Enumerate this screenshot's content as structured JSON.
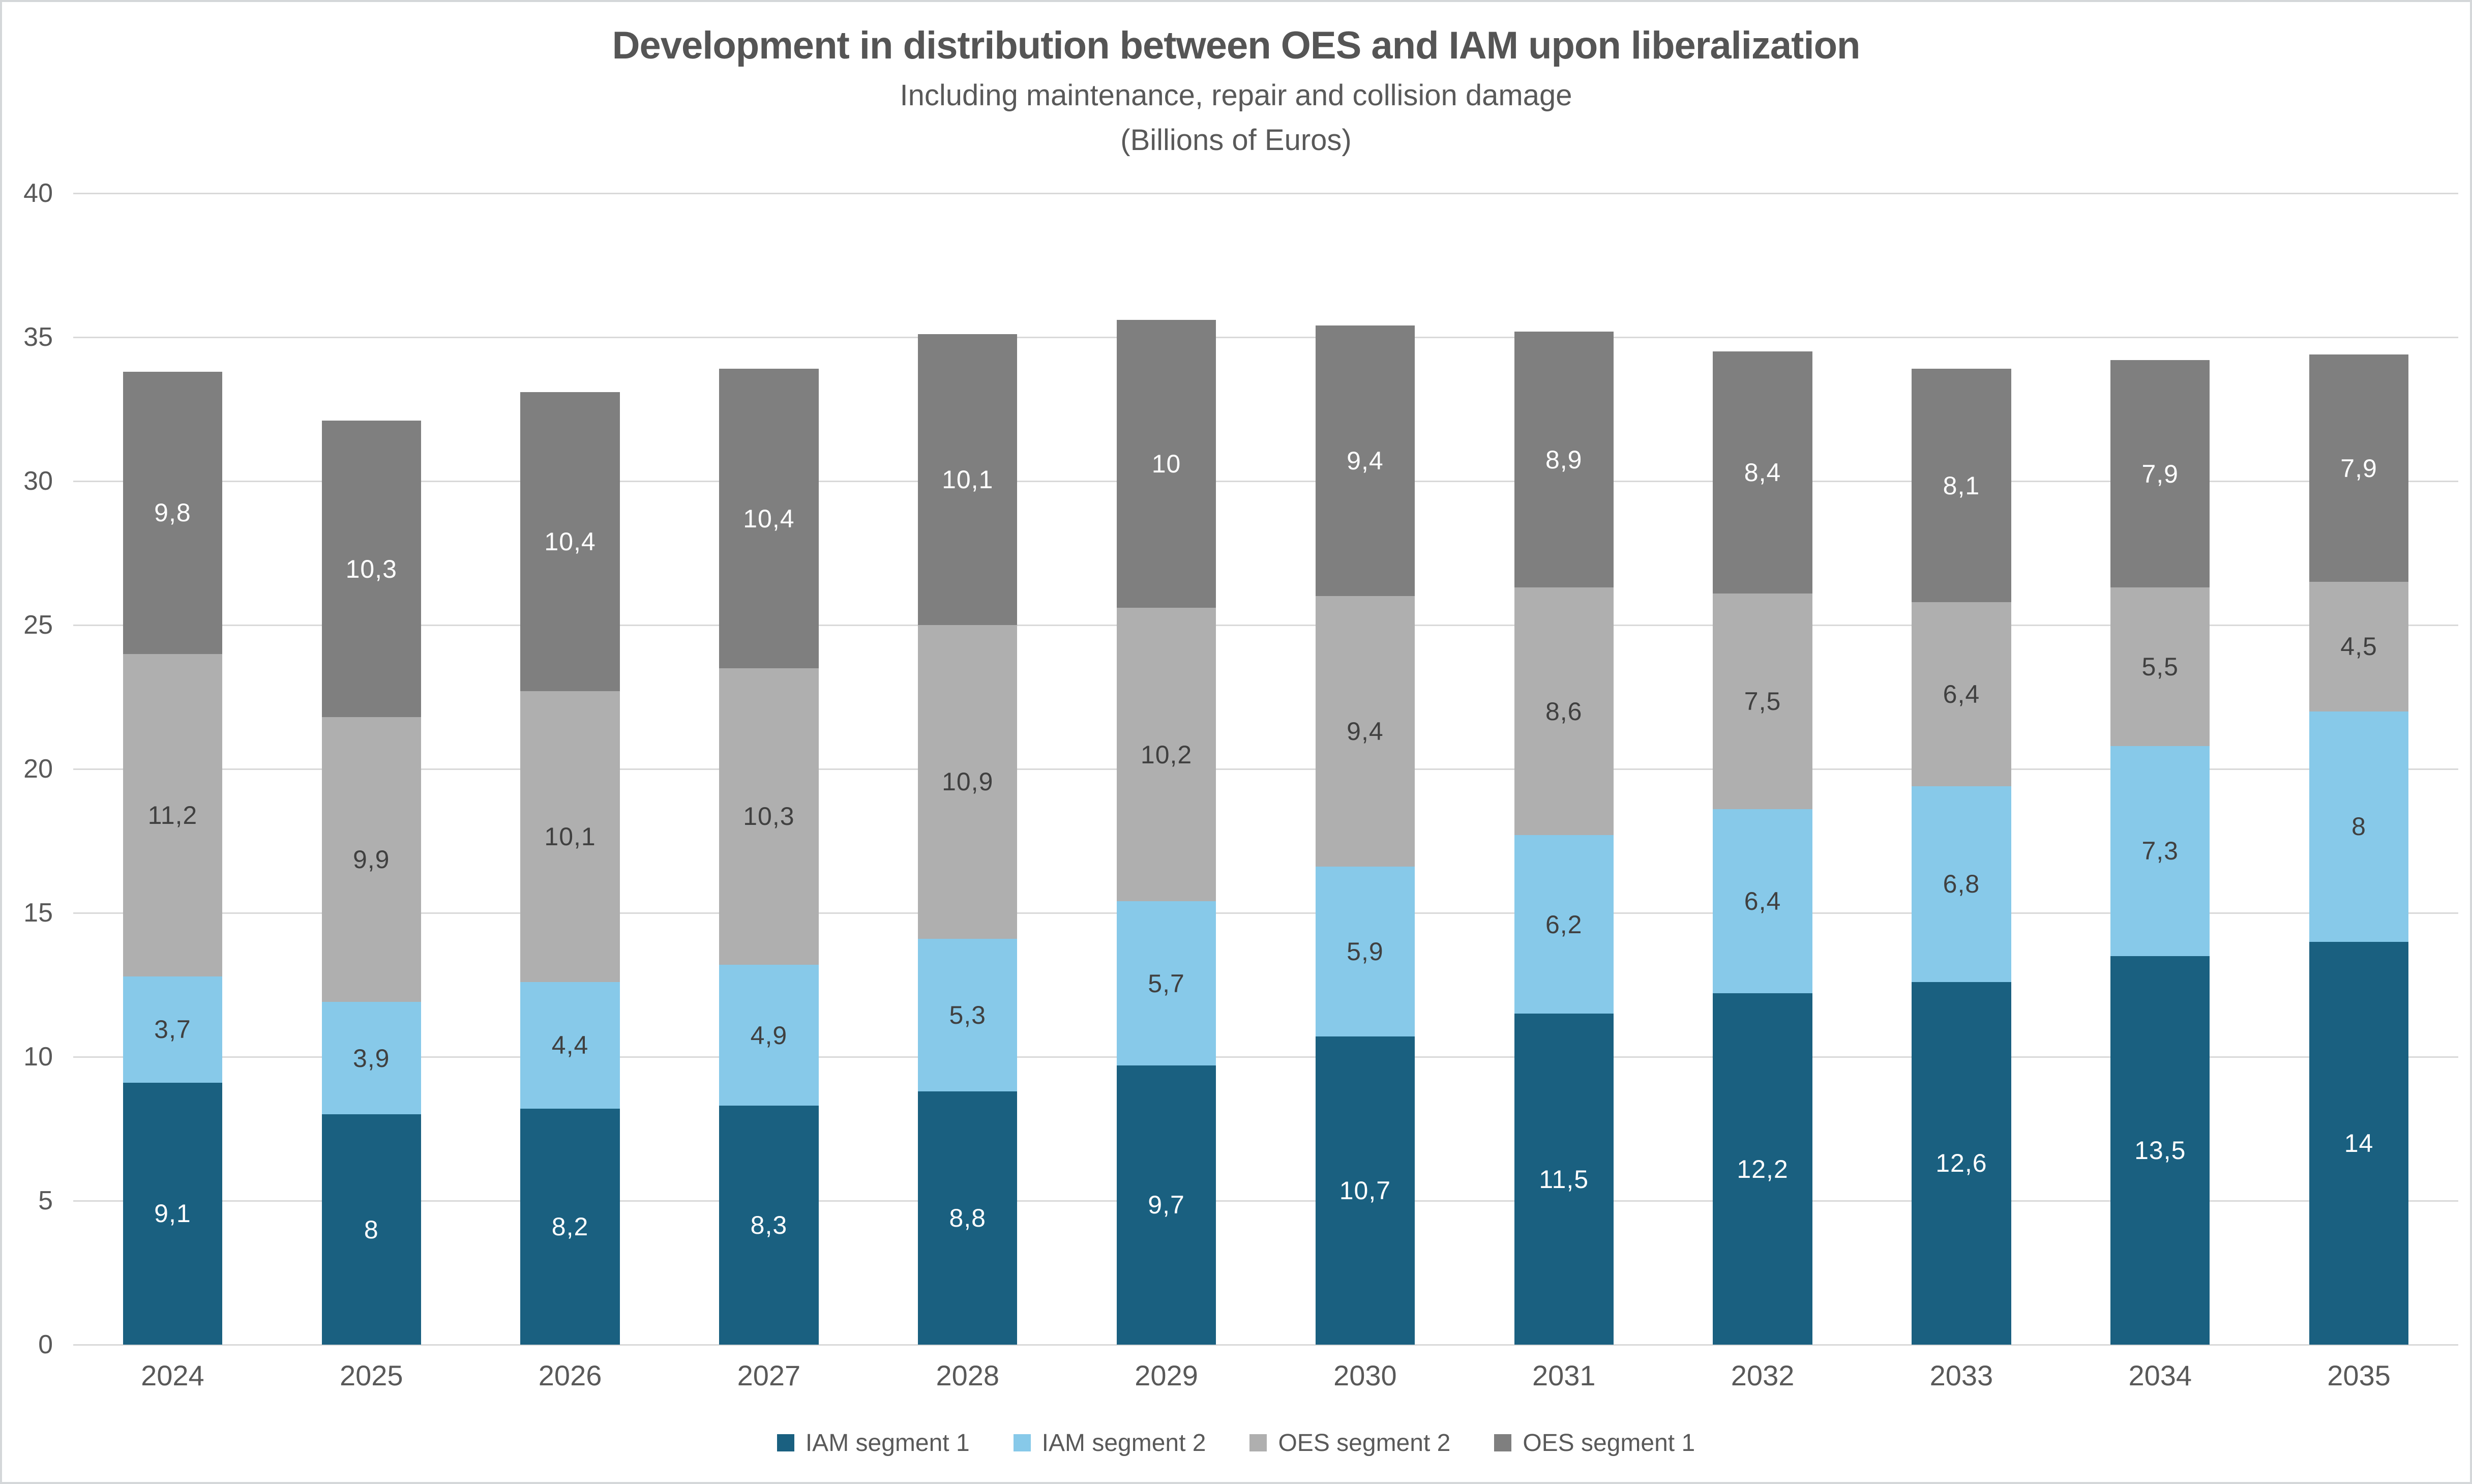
{
  "chart_data": {
    "type": "bar",
    "stacked": true,
    "title": "Development in distribution between OES and IAM upon liberalization",
    "subtitle": "Including maintenance, repair and collision damage",
    "units_line": "(Billions of Euros)",
    "categories": [
      "2024",
      "2025",
      "2026",
      "2027",
      "2028",
      "2029",
      "2030",
      "2031",
      "2032",
      "2033",
      "2034",
      "2035"
    ],
    "series": [
      {
        "name": "IAM segment 1",
        "color": "#1A6080",
        "label_color": "#FFFFFF",
        "values": [
          9.1,
          8,
          8.2,
          8.3,
          8.8,
          9.7,
          10.7,
          11.5,
          12.2,
          12.6,
          13.5,
          14
        ],
        "labels": [
          "9,1",
          "8",
          "8,2",
          "8,3",
          "8,8",
          "9,7",
          "10,7",
          "11,5",
          "12,2",
          "12,6",
          "13,5",
          "14"
        ]
      },
      {
        "name": "IAM segment 2",
        "color": "#87C9E9",
        "label_color": "#404040",
        "values": [
          3.7,
          3.9,
          4.4,
          4.9,
          5.3,
          5.7,
          5.9,
          6.2,
          6.4,
          6.8,
          7.3,
          8
        ],
        "labels": [
          "3,7",
          "3,9",
          "4,4",
          "4,9",
          "5,3",
          "5,7",
          "5,9",
          "6,2",
          "6,4",
          "6,8",
          "7,3",
          "8"
        ]
      },
      {
        "name": "OES segment 2",
        "color": "#AFAFAF",
        "label_color": "#404040",
        "values": [
          11.2,
          9.9,
          10.1,
          10.3,
          10.9,
          10.2,
          9.4,
          8.6,
          7.5,
          6.4,
          5.5,
          4.5
        ],
        "labels": [
          "11,2",
          "9,9",
          "10,1",
          "10,3",
          "10,9",
          "10,2",
          "9,4",
          "8,6",
          "7,5",
          "6,4",
          "5,5",
          "4,5"
        ]
      },
      {
        "name": "OES segment 1",
        "color": "#7F7F7F",
        "label_color": "#FFFFFF",
        "values": [
          9.8,
          10.3,
          10.4,
          10.4,
          10.1,
          10,
          9.4,
          8.9,
          8.4,
          8.1,
          7.9,
          7.9
        ],
        "labels": [
          "9,8",
          "10,3",
          "10,4",
          "10,4",
          "10,1",
          "10",
          "9,4",
          "8,9",
          "8,4",
          "8,1",
          "7,9",
          "7,9"
        ]
      }
    ],
    "y_axis": {
      "min": 0,
      "max": 40,
      "step": 5,
      "tick_labels": [
        "0",
        "5",
        "10",
        "15",
        "20",
        "25",
        "30",
        "35",
        "40"
      ],
      "gridline_color": "#D9D9D9"
    },
    "legend": {
      "position": "bottom",
      "entries": [
        {
          "label": "IAM segment 1",
          "color": "#1A6080"
        },
        {
          "label": "IAM segment 2",
          "color": "#87C9E9"
        },
        {
          "label": "OES segment 2",
          "color": "#AFAFAF"
        },
        {
          "label": "OES segment 1",
          "color": "#7F7F7F"
        }
      ]
    }
  }
}
